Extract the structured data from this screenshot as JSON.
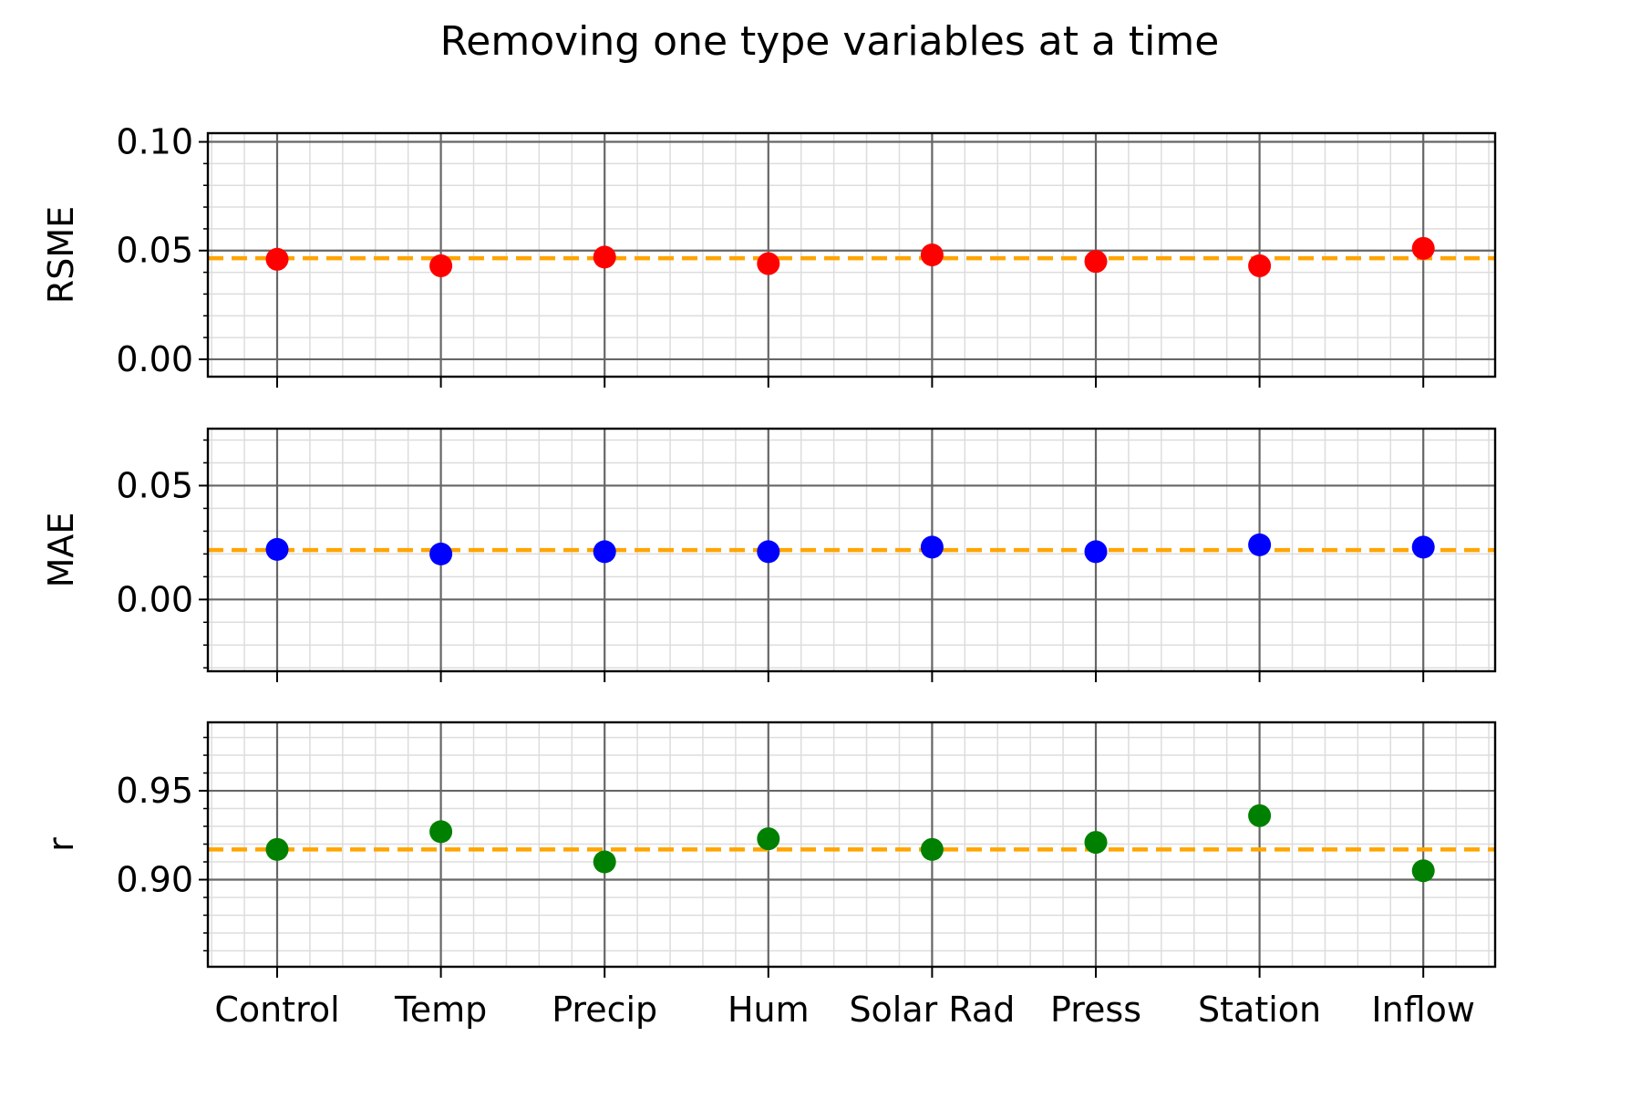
{
  "chart_data": {
    "type": "scatter",
    "title": "Removing one type variables at a time",
    "categories": [
      "Control",
      "Temp",
      "Precip",
      "Hum",
      "Solar Rad",
      "Press",
      "Station",
      "Inflow"
    ],
    "reference_color": "#FFA500",
    "panels": [
      {
        "name": "rsme",
        "ylabel": "RSME",
        "ylim": [
          -0.008,
          0.104
        ],
        "yticks": [
          0.0,
          0.05,
          0.1
        ],
        "ytick_labels": [
          "0.00",
          "0.05",
          "0.10"
        ],
        "minor_step": 0.01,
        "color": "#FF0000",
        "values": [
          0.046,
          0.043,
          0.047,
          0.044,
          0.048,
          0.045,
          0.043,
          0.051
        ],
        "reference": 0.0465
      },
      {
        "name": "mae",
        "ylabel": "MAE",
        "ylim": [
          -0.0315,
          0.075
        ],
        "yticks": [
          0.0,
          0.05
        ],
        "ytick_labels": [
          "0.00",
          "0.05"
        ],
        "minor_step": 0.01,
        "color": "#0000FF",
        "values": [
          0.022,
          0.02,
          0.021,
          0.021,
          0.023,
          0.021,
          0.024,
          0.023
        ],
        "reference": 0.0217
      },
      {
        "name": "r",
        "ylabel": "r",
        "ylim": [
          0.851,
          0.9885
        ],
        "yticks": [
          0.9,
          0.95
        ],
        "ytick_labels": [
          "0.90",
          "0.95"
        ],
        "minor_step": 0.01,
        "color": "#008000",
        "values": [
          0.917,
          0.927,
          0.91,
          0.923,
          0.917,
          0.921,
          0.936,
          0.905
        ],
        "reference": 0.917
      }
    ]
  }
}
